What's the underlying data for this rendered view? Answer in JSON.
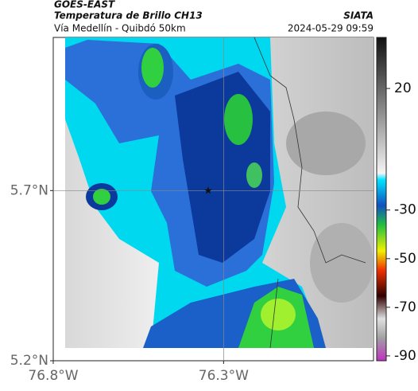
{
  "header": {
    "product": "GOES-EAST",
    "title": "Temperatura de Brillo CH13",
    "subtitle": "Vía Medellín - Quibdó 50km",
    "source": "SIATA",
    "datetime": "2024-05-29 09:59"
  },
  "map": {
    "xlim": [
      -76.8,
      -75.86
    ],
    "ylim": [
      5.2,
      6.15
    ],
    "xticks": [
      {
        "value": -76.8,
        "label": "76.8°W"
      },
      {
        "value": -76.3,
        "label": "76.3°W"
      }
    ],
    "yticks": [
      {
        "value": 5.7,
        "label": "5.7°N"
      },
      {
        "value": 5.2,
        "label": "5.2°N"
      }
    ]
  },
  "colorbar": {
    "lim": [
      -92,
      41
    ],
    "ticks": [
      20,
      -30,
      -50,
      -70,
      -90
    ]
  }
}
